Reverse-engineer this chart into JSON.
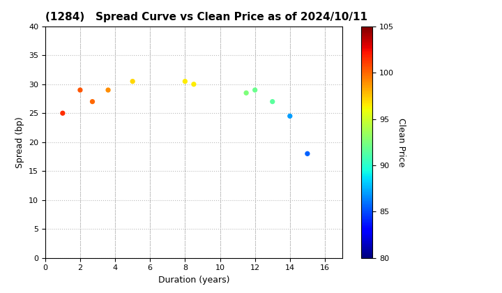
{
  "title": "(1284)   Spread Curve vs Clean Price as of 2024/10/11",
  "xlabel": "Duration (years)",
  "ylabel": "Spread (bp)",
  "colorbar_label": "Clean Price",
  "xlim": [
    0,
    17
  ],
  "ylim": [
    0,
    40
  ],
  "xticks": [
    0,
    2,
    4,
    6,
    8,
    10,
    12,
    14,
    16
  ],
  "yticks": [
    0,
    5,
    10,
    15,
    20,
    25,
    30,
    35,
    40
  ],
  "cbar_min": 80,
  "cbar_max": 105,
  "cbar_ticks": [
    80,
    85,
    90,
    95,
    100,
    105
  ],
  "points": [
    {
      "duration": 1.0,
      "spread": 25.0,
      "price": 101.5
    },
    {
      "duration": 2.0,
      "spread": 29.0,
      "price": 100.5
    },
    {
      "duration": 2.7,
      "spread": 27.0,
      "price": 100.0
    },
    {
      "duration": 3.6,
      "spread": 29.0,
      "price": 99.0
    },
    {
      "duration": 5.0,
      "spread": 30.5,
      "price": 97.0
    },
    {
      "duration": 8.0,
      "spread": 30.5,
      "price": 96.5
    },
    {
      "duration": 8.5,
      "spread": 30.0,
      "price": 96.5
    },
    {
      "duration": 11.5,
      "spread": 28.5,
      "price": 92.5
    },
    {
      "duration": 12.0,
      "spread": 29.0,
      "price": 92.0
    },
    {
      "duration": 13.0,
      "spread": 27.0,
      "price": 91.5
    },
    {
      "duration": 14.0,
      "spread": 24.5,
      "price": 87.0
    },
    {
      "duration": 15.0,
      "spread": 18.0,
      "price": 85.5
    }
  ],
  "marker_size": 18,
  "background_color": "#ffffff",
  "grid_color": "#bbbbbb",
  "title_fontsize": 11,
  "axis_fontsize": 9,
  "tick_fontsize": 8,
  "cbar_fontsize": 9
}
